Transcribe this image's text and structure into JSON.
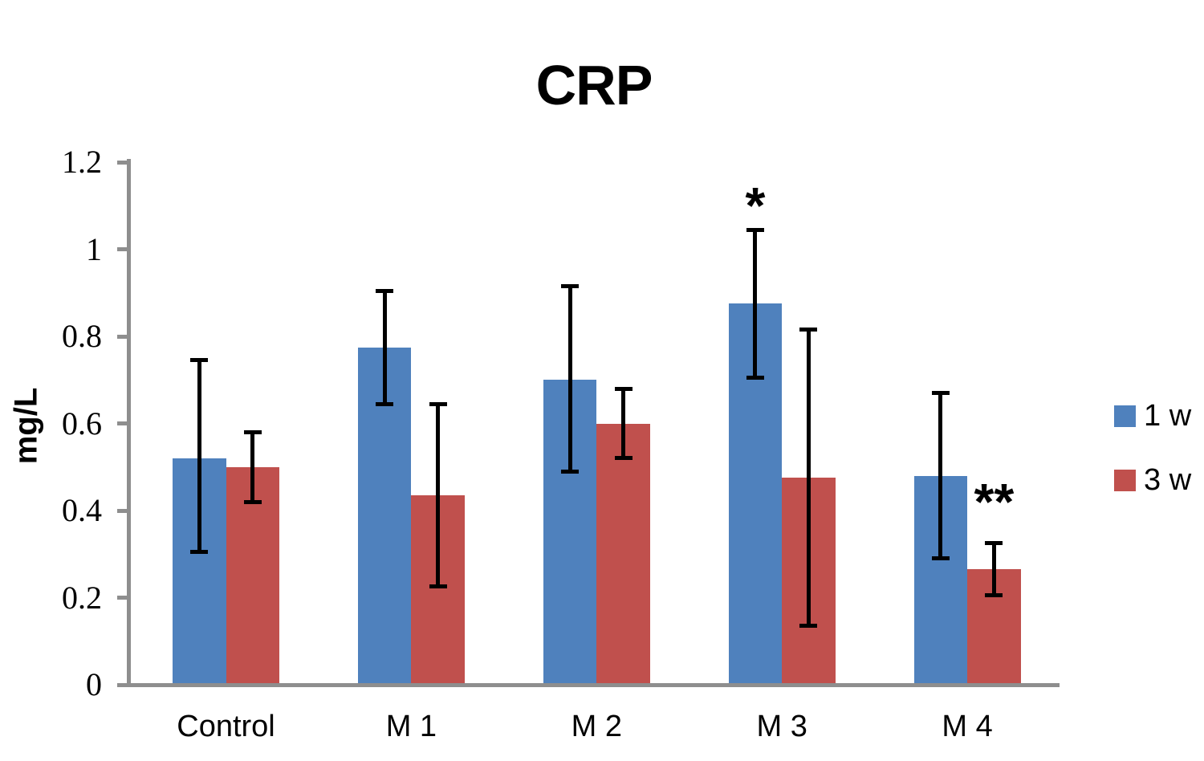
{
  "chart_data": {
    "type": "bar",
    "title": "CRP",
    "ylabel": "mg/L",
    "categories": [
      "Control",
      "M 1",
      "M 2",
      "M 3",
      "M 4"
    ],
    "series": [
      {
        "name": "1 w",
        "color": "#4F81BD",
        "values": [
          0.52,
          0.775,
          0.7,
          0.875,
          0.48
        ],
        "error_low": [
          0.305,
          0.645,
          0.49,
          0.705,
          0.29
        ],
        "error_high": [
          0.745,
          0.905,
          0.915,
          1.045,
          0.67
        ]
      },
      {
        "name": "3 w",
        "color": "#C0504D",
        "values": [
          0.5,
          0.435,
          0.6,
          0.475,
          0.265
        ],
        "error_low": [
          0.42,
          0.225,
          0.52,
          0.135,
          0.205
        ],
        "error_high": [
          0.58,
          0.645,
          0.68,
          0.815,
          0.325
        ]
      }
    ],
    "ylim": [
      0,
      1.2
    ],
    "ytick_values": [
      0,
      0.2,
      0.4,
      0.6,
      0.8,
      1.0,
      1.2
    ],
    "ytick_labels": [
      "0",
      "0.2",
      "0.4",
      "0.6",
      "0.8",
      "1",
      "1.2"
    ],
    "grid": false,
    "legend_position": "right",
    "error_bar_color": "#000000",
    "axis_color": "#8E8E8E",
    "annotations": [
      {
        "text": "*",
        "category": "M 3",
        "series": "1 w",
        "value": 1.12
      },
      {
        "text": "**",
        "category": "M 4",
        "series": "3 w",
        "value": 0.44
      }
    ]
  }
}
